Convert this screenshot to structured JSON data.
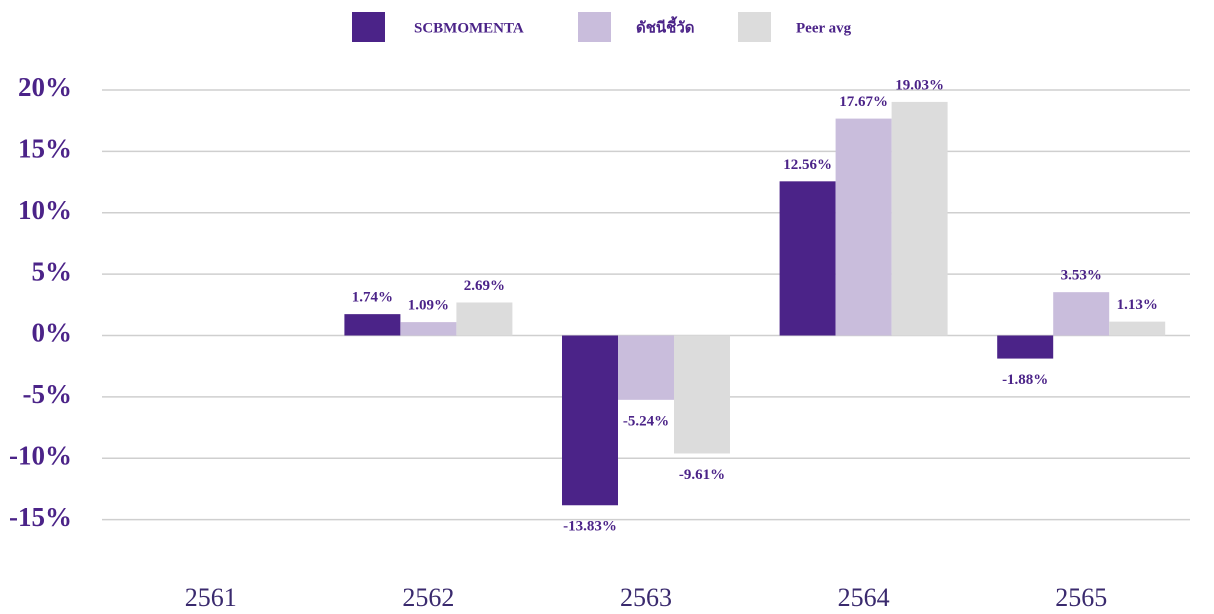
{
  "chart_data": {
    "type": "bar",
    "categories": [
      "2561",
      "2562",
      "2563",
      "2564",
      "2565"
    ],
    "series": [
      {
        "name": "SCBMOMENTA",
        "color": "#4b2388",
        "values": [
          null,
          1.74,
          -13.83,
          12.56,
          -1.88
        ],
        "value_labels": [
          null,
          "1.74%",
          "-13.83%",
          "12.56%",
          "-1.88%"
        ]
      },
      {
        "name": "ดัชนีชี้วัด",
        "color": "#c9bddc",
        "values": [
          null,
          1.09,
          -5.24,
          17.67,
          3.53
        ],
        "value_labels": [
          null,
          "1.09%",
          "-5.24%",
          "17.67%",
          "3.53%"
        ]
      },
      {
        "name": "Peer avg",
        "color": "#dcdcdc",
        "values": [
          null,
          2.69,
          -9.61,
          19.03,
          1.13
        ],
        "value_labels": [
          null,
          "2.69%",
          "-9.61%",
          "19.03%",
          "1.13%"
        ]
      }
    ],
    "ylim": [
      -20,
      20
    ],
    "yticks": [
      {
        "value": 20,
        "label": "20%"
      },
      {
        "value": 15,
        "label": "15%"
      },
      {
        "value": 10,
        "label": "10%"
      },
      {
        "value": 5,
        "label": "5%"
      },
      {
        "value": 0,
        "label": "0%"
      },
      {
        "value": -5,
        "label": "-5%"
      },
      {
        "value": -10,
        "label": "-10%"
      },
      {
        "value": -15,
        "label": "-15%"
      }
    ],
    "grid": true,
    "legend": "top"
  }
}
